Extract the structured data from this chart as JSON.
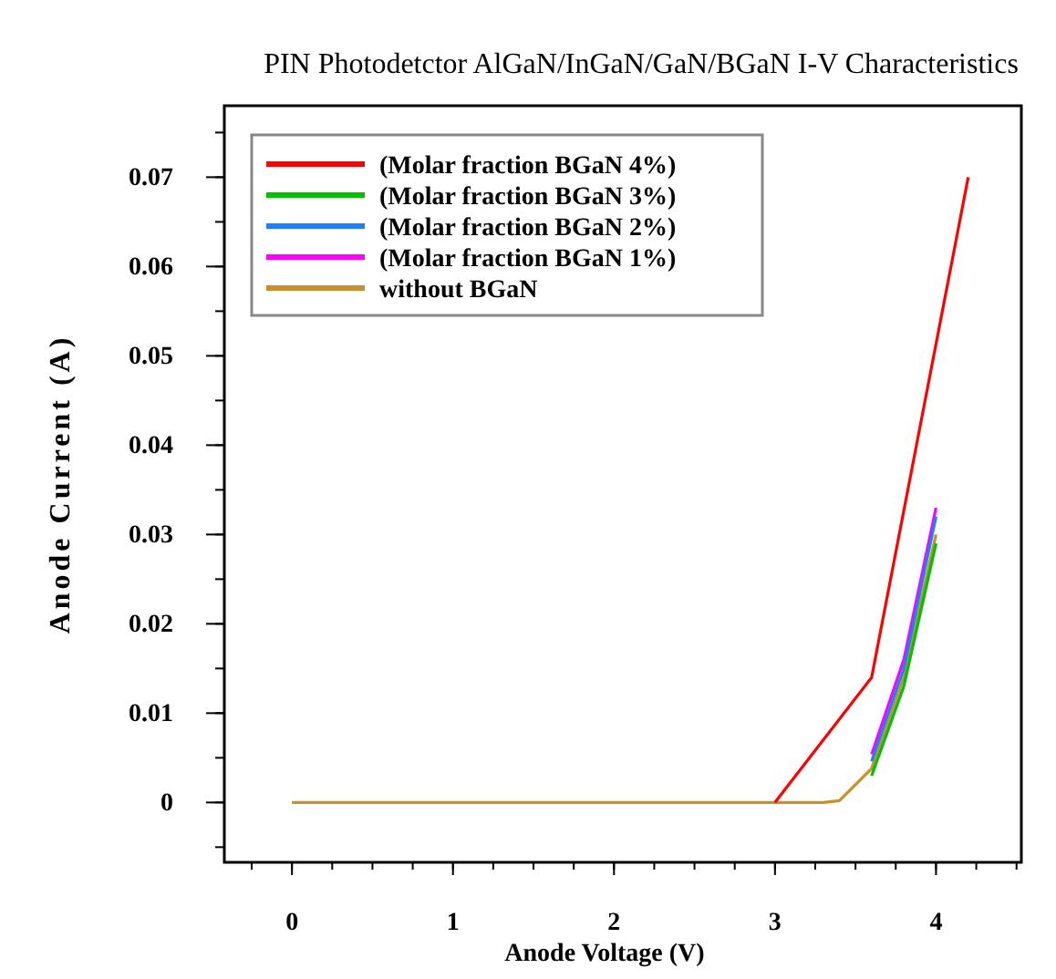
{
  "chart_data": {
    "type": "line",
    "title": "PIN Photodetctor AlGaN/InGaN/GaN/BGaN I-V Characteristics",
    "xlabel": "Anode Voltage (V)",
    "ylabel": "Anode Current (A)",
    "xlim": [
      -0.42,
      4.53
    ],
    "xticks": [
      0,
      1,
      2,
      3,
      4
    ],
    "ylim": [
      -0.0067,
      0.078
    ],
    "yticks": [
      0,
      0.01,
      0.02,
      0.03,
      0.04,
      0.05,
      0.06,
      0.07
    ],
    "grid": false,
    "legend": "top left",
    "line_style": "solid",
    "series": [
      {
        "name": "(Molar fraction BGaN 4%)",
        "color": "#ff0000",
        "x": [
          3,
          3.6,
          4.2
        ],
        "values": [
          0,
          0.014,
          0.07
        ]
      },
      {
        "name": "(Molar fraction BGaN 3%)",
        "color": "#00c000",
        "x": [
          3.6,
          3.8,
          4
        ],
        "values": [
          0.003,
          0.013,
          0.029
        ]
      },
      {
        "name": "(Molar fraction BGaN 2%)",
        "color": "#1e7fff",
        "x": [
          3.6,
          3.8,
          4
        ],
        "values": [
          0.0046,
          0.015,
          0.032
        ]
      },
      {
        "name": "(Molar fraction BGaN 1%)",
        "color": "#ff00ff",
        "x": [
          3.6,
          3.8,
          4
        ],
        "values": [
          0.0054,
          0.016,
          0.033
        ]
      },
      {
        "name": "without BGaN",
        "color": "#c8902a",
        "x": [
          0,
          1,
          2,
          3,
          3.3,
          3.4,
          3.6,
          3.8,
          4
        ],
        "values": [
          0,
          0,
          0,
          0,
          0,
          0.0002,
          0.0038,
          0.014,
          0.03
        ]
      }
    ]
  }
}
